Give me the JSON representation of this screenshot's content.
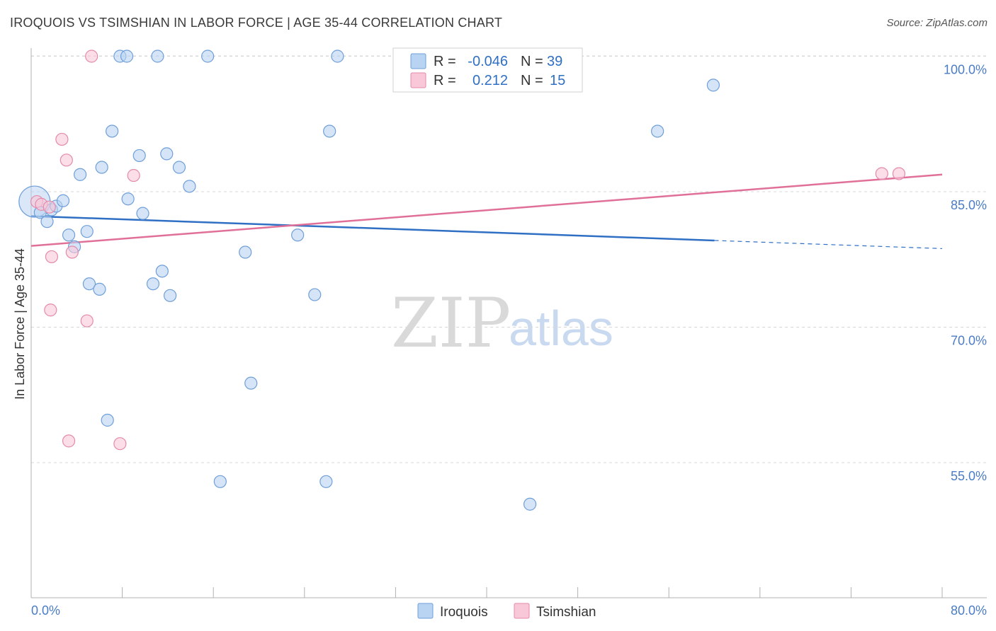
{
  "header": {
    "title": "IROQUOIS VS TSIMSHIAN IN LABOR FORCE | AGE 35-44 CORRELATION CHART",
    "source": "Source: ZipAtlas.com"
  },
  "watermark": {
    "zip": "ZIP",
    "atlas": "atlas"
  },
  "colors": {
    "iroquois_fill": "#b9d3f2",
    "iroquois_stroke": "#6f9fd8",
    "iroquois_line": "#2f6fc4",
    "tsimshian_fill": "#f8c8d8",
    "tsimshian_stroke": "#e48aaa",
    "tsimshian_line": "#e07098",
    "tick_text": "#4a7cc7"
  },
  "legend": {
    "rows": [
      {
        "r_label": "R =",
        "r_value": "-0.046",
        "n_label": "N =",
        "n_value": "39"
      },
      {
        "r_label": "R =",
        "r_value": "0.212",
        "n_label": "N =",
        "n_value": "15"
      }
    ]
  },
  "chart_data": {
    "type": "scatter",
    "title": "IROQUOIS VS TSIMSHIAN IN LABOR FORCE | AGE 35-44 CORRELATION CHART",
    "xlabel": "",
    "ylabel": "In Labor Force | Age 35-44",
    "xlim": [
      0,
      80
    ],
    "ylim": [
      40,
      102
    ],
    "x_tick_labels": [
      "0.0%",
      "80.0%"
    ],
    "y_ticks": [
      55,
      70,
      85,
      100
    ],
    "y_tick_labels": [
      "55.0%",
      "70.0%",
      "85.0%",
      "100.0%"
    ],
    "series": [
      {
        "name": "Iroquois",
        "r": -0.046,
        "n": 39,
        "trend": {
          "x0": 0,
          "y0": 82.3,
          "x1": 60,
          "y1": 79.6,
          "dash_to_x": 80,
          "dash_to_y": 78.7
        },
        "points": [
          [
            0.3,
            83.9
          ],
          [
            0.8,
            82.7
          ],
          [
            1.4,
            81.7
          ],
          [
            1.8,
            83.0
          ],
          [
            2.2,
            83.4
          ],
          [
            2.8,
            84.0
          ],
          [
            3.3,
            80.2
          ],
          [
            3.8,
            78.9
          ],
          [
            4.3,
            86.9
          ],
          [
            4.9,
            80.6
          ],
          [
            5.1,
            74.8
          ],
          [
            6.0,
            74.2
          ],
          [
            6.2,
            87.7
          ],
          [
            6.7,
            59.7
          ],
          [
            7.1,
            91.7
          ],
          [
            7.8,
            100.0
          ],
          [
            8.4,
            100.0
          ],
          [
            8.5,
            84.2
          ],
          [
            9.5,
            89.0
          ],
          [
            9.8,
            82.6
          ],
          [
            10.7,
            74.8
          ],
          [
            11.1,
            100.0
          ],
          [
            11.5,
            76.2
          ],
          [
            11.9,
            89.2
          ],
          [
            12.2,
            73.5
          ],
          [
            13.0,
            87.7
          ],
          [
            13.9,
            85.6
          ],
          [
            15.5,
            100.0
          ],
          [
            16.6,
            52.9
          ],
          [
            18.8,
            78.3
          ],
          [
            19.3,
            63.8
          ],
          [
            23.4,
            80.2
          ],
          [
            24.9,
            73.6
          ],
          [
            25.9,
            52.9
          ],
          [
            26.2,
            91.7
          ],
          [
            26.9,
            100.0
          ],
          [
            43.8,
            50.4
          ],
          [
            55.0,
            91.7
          ],
          [
            59.9,
            96.8
          ]
        ]
      },
      {
        "name": "Tsimshian",
        "r": 0.212,
        "n": 15,
        "trend": {
          "x0": 0,
          "y0": 79.0,
          "x1": 80,
          "y1": 86.9
        },
        "points": [
          [
            0.5,
            83.9
          ],
          [
            0.9,
            83.6
          ],
          [
            1.6,
            83.3
          ],
          [
            1.7,
            71.9
          ],
          [
            1.8,
            77.8
          ],
          [
            2.7,
            90.8
          ],
          [
            3.1,
            88.5
          ],
          [
            3.3,
            57.4
          ],
          [
            3.6,
            78.3
          ],
          [
            4.9,
            70.7
          ],
          [
            5.3,
            100.0
          ],
          [
            7.8,
            57.1
          ],
          [
            9.0,
            86.8
          ],
          [
            74.7,
            87.0
          ],
          [
            76.2,
            87.0
          ]
        ]
      }
    ]
  },
  "bottom_legend": {
    "items": [
      "Iroquois",
      "Tsimshian"
    ]
  }
}
